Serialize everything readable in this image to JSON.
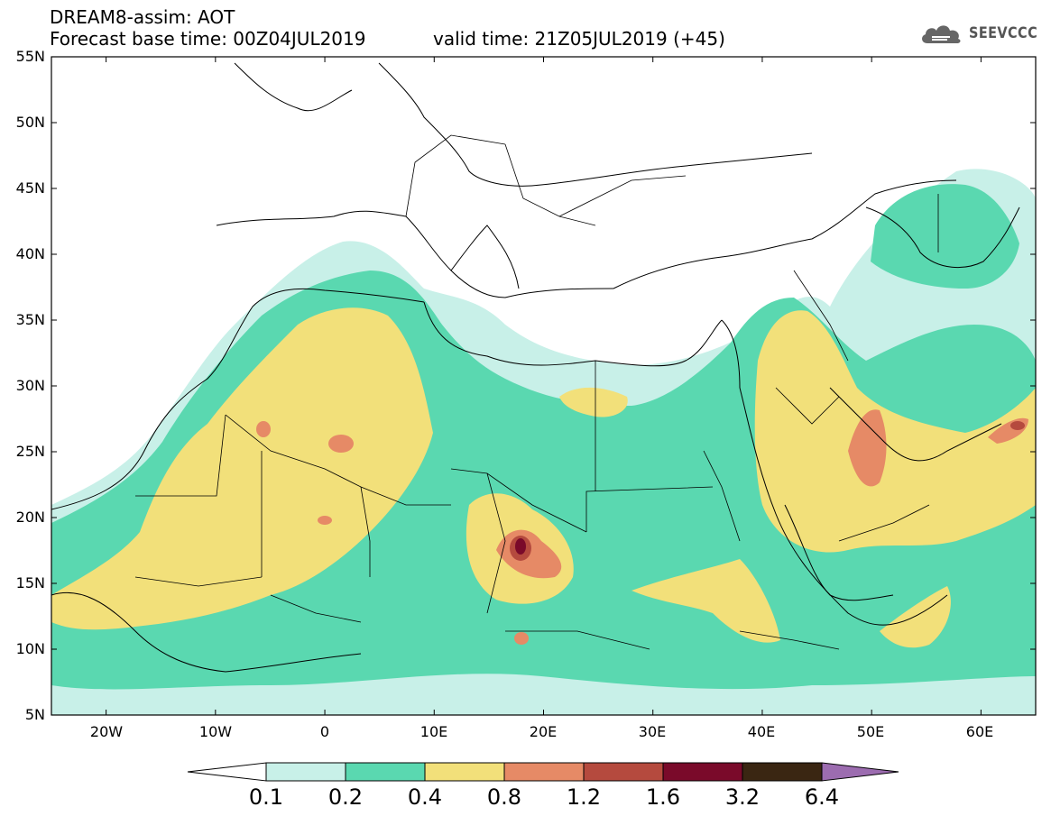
{
  "header": {
    "title": "DREAM8-assim: AOT",
    "base_time": "Forecast base time: 00Z04JUL2019",
    "valid_time": "valid time: 21Z05JUL2019 (+45)"
  },
  "logo": {
    "text": "SEEVCCC",
    "icon": "cloud-icon"
  },
  "map": {
    "lat_labels": [
      "55N",
      "50N",
      "45N",
      "40N",
      "35N",
      "30N",
      "25N",
      "20N",
      "15N",
      "10N",
      "5N"
    ],
    "lon_labels": [
      "20W",
      "10W",
      "0",
      "10E",
      "20E",
      "30E",
      "40E",
      "50E",
      "60E"
    ],
    "lat_range": [
      5,
      55
    ],
    "lon_range": [
      -25,
      65
    ]
  },
  "colorbar": {
    "labels": [
      "0.1",
      "0.2",
      "0.4",
      "0.8",
      "1.2",
      "1.6",
      "3.2",
      "6.4"
    ],
    "colors": [
      "#c8f0e8",
      "#5ad8b0",
      "#f2e07a",
      "#e68a66",
      "#b54a3e",
      "#7a0a2a",
      "#3a2612",
      "#9c6cb0"
    ]
  }
}
